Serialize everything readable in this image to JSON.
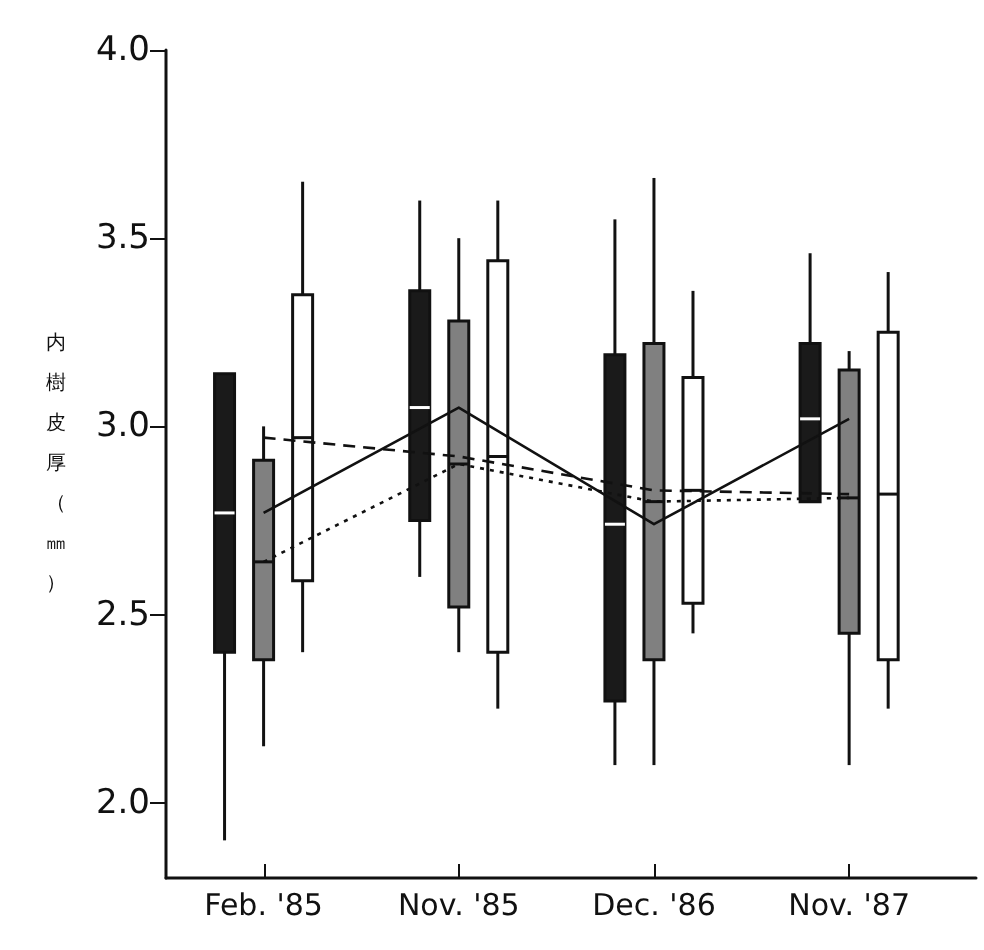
{
  "chart_data": {
    "type": "box",
    "ylabel": "内樹皮厚（㎜）",
    "categories": [
      "Feb. '85",
      "Nov. '85",
      "Dec. '86",
      "Nov. '87"
    ],
    "ylim": [
      1.8,
      4.0
    ],
    "yticks": [
      {
        "value": 2.0,
        "label": "2.0"
      },
      {
        "value": 2.5,
        "label": "2.5"
      },
      {
        "value": 3.0,
        "label": "3.0"
      },
      {
        "value": 3.5,
        "label": "3.5"
      },
      {
        "value": 4.0,
        "label": "4.0"
      }
    ],
    "grid": false,
    "series": [
      {
        "color": "#1a1a1a",
        "boxes": [
          {
            "low": 1.9,
            "q1": 2.4,
            "q3": 3.14,
            "high": 3.14,
            "mean": 2.77
          },
          {
            "low": 2.6,
            "q1": 2.75,
            "q3": 3.36,
            "high": 3.6,
            "mean": 3.05
          },
          {
            "low": 2.1,
            "q1": 2.27,
            "q3": 3.19,
            "high": 3.55,
            "mean": 2.74
          },
          {
            "low": 2.8,
            "q1": 2.8,
            "q3": 3.22,
            "high": 3.46,
            "mean": 3.02
          }
        ]
      },
      {
        "color": "#808080",
        "boxes": [
          {
            "low": 2.15,
            "q1": 2.38,
            "q3": 2.91,
            "high": 3.0,
            "mean": 2.64
          },
          {
            "low": 2.4,
            "q1": 2.52,
            "q3": 3.28,
            "high": 3.5,
            "mean": 2.9
          },
          {
            "low": 2.1,
            "q1": 2.38,
            "q3": 3.22,
            "high": 3.66,
            "mean": 2.8
          },
          {
            "low": 2.1,
            "q1": 2.45,
            "q3": 3.15,
            "high": 3.2,
            "mean": 2.81
          }
        ]
      },
      {
        "color": "#ffffff",
        "boxes": [
          {
            "low": 2.4,
            "q1": 2.59,
            "q3": 3.35,
            "high": 3.65,
            "mean": 2.97
          },
          {
            "low": 2.25,
            "q1": 2.4,
            "q3": 3.44,
            "high": 3.6,
            "mean": 2.92
          },
          {
            "low": 2.45,
            "q1": 2.53,
            "q3": 3.13,
            "high": 3.36,
            "mean": 2.83
          },
          {
            "low": 2.25,
            "q1": 2.38,
            "q3": 3.25,
            "high": 3.41,
            "mean": 2.82
          }
        ]
      },
      {
        "type": "line",
        "color": "#111111",
        "line_style": "solid",
        "values": [
          2.77,
          3.05,
          2.74,
          3.02
        ]
      },
      {
        "type": "line",
        "color": "#111111",
        "line_style": "dotted",
        "values": [
          2.64,
          2.9,
          2.8,
          2.81
        ]
      },
      {
        "type": "line",
        "color": "#111111",
        "line_style": "dashed",
        "values": [
          2.97,
          2.92,
          2.83,
          2.82
        ]
      }
    ]
  }
}
